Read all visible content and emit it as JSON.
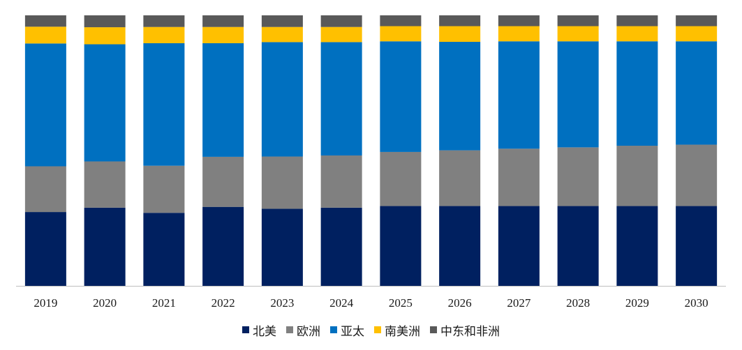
{
  "chart_data": {
    "type": "bar",
    "stacked": true,
    "percent": true,
    "title": "",
    "xlabel": "",
    "ylabel": "",
    "ylim": [
      0,
      1
    ],
    "grid": false,
    "legend_position": "bottom",
    "categories": [
      "2019",
      "2020",
      "2021",
      "2022",
      "2023",
      "2024",
      "2025",
      "2026",
      "2027",
      "2028",
      "2029",
      "2030"
    ],
    "series": [
      {
        "name": "北美",
        "color": "#002060",
        "values": [
          0.273,
          0.289,
          0.27,
          0.292,
          0.285,
          0.289,
          0.295,
          0.295,
          0.295,
          0.295,
          0.295,
          0.295
        ]
      },
      {
        "name": "欧洲",
        "color": "#808080",
        "values": [
          0.169,
          0.171,
          0.174,
          0.185,
          0.193,
          0.193,
          0.2,
          0.206,
          0.212,
          0.217,
          0.223,
          0.227
        ]
      },
      {
        "name": "亚太",
        "color": "#0070C0",
        "values": [
          0.454,
          0.433,
          0.453,
          0.42,
          0.423,
          0.419,
          0.409,
          0.401,
          0.397,
          0.392,
          0.386,
          0.382
        ]
      },
      {
        "name": "南美洲",
        "color": "#FFC000",
        "values": [
          0.062,
          0.063,
          0.06,
          0.06,
          0.056,
          0.056,
          0.056,
          0.058,
          0.056,
          0.056,
          0.056,
          0.056
        ]
      },
      {
        "name": "中东和非洲",
        "color": "#595959",
        "values": [
          0.042,
          0.044,
          0.043,
          0.043,
          0.043,
          0.043,
          0.04,
          0.04,
          0.04,
          0.04,
          0.04,
          0.04
        ]
      }
    ]
  }
}
